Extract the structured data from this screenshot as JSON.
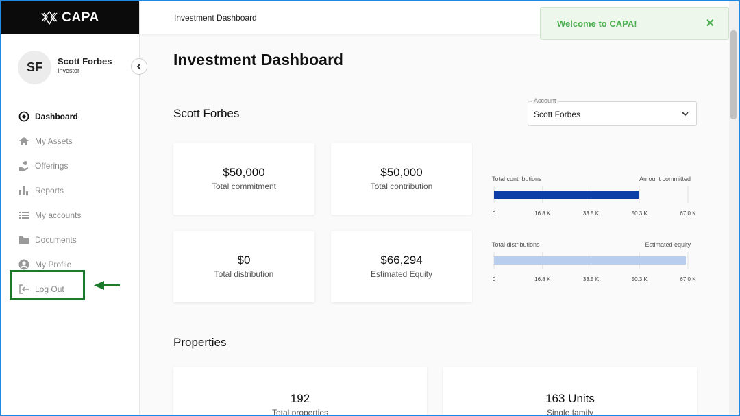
{
  "brand": {
    "name": "CAPA"
  },
  "user": {
    "initials": "SF",
    "name": "Scott Forbes",
    "role": "Investor"
  },
  "nav": [
    {
      "label": "Dashboard",
      "icon": "target-icon",
      "active": true
    },
    {
      "label": "My Assets",
      "icon": "home-icon",
      "active": false
    },
    {
      "label": "Offerings",
      "icon": "hand-coin-icon",
      "active": false
    },
    {
      "label": "Reports",
      "icon": "bar-chart-icon",
      "active": false
    },
    {
      "label": "My accounts",
      "icon": "list-icon",
      "active": false
    },
    {
      "label": "Documents",
      "icon": "folder-icon",
      "active": false
    },
    {
      "label": "My Profile",
      "icon": "profile-icon",
      "active": false
    },
    {
      "label": "Log Out",
      "icon": "logout-icon",
      "active": false
    }
  ],
  "topbar": {
    "title": "Investment Dashboard"
  },
  "toast": {
    "message": "Welcome to CAPA!",
    "close": "✕"
  },
  "main": {
    "title": "Investment Dashboard",
    "investor_name": "Scott Forbes",
    "account": {
      "label": "Account",
      "value": "Scott Forbes"
    }
  },
  "cards": [
    {
      "value": "$50,000",
      "label": "Total commitment"
    },
    {
      "value": "$50,000",
      "label": "Total contribution"
    },
    {
      "value": "$0",
      "label": "Total distribution"
    },
    {
      "value": "$66,294",
      "label": "Estimated Equity"
    }
  ],
  "chart_data": [
    {
      "type": "bar",
      "orientation": "horizontal",
      "left_label": "Total contributions",
      "right_label": "Amount committed",
      "value": 50000,
      "xlim": [
        0,
        67000
      ],
      "ticks": [
        "0",
        "16.8 K",
        "33.5 K",
        "50.3 K",
        "67.0 K"
      ],
      "tick_values": [
        0,
        16750,
        33500,
        50250,
        67000
      ],
      "color": "#0d3ea8"
    },
    {
      "type": "bar",
      "orientation": "horizontal",
      "left_label": "Total distributions",
      "right_label": "Estimated equity",
      "value": 66294,
      "xlim": [
        0,
        67000
      ],
      "ticks": [
        "0",
        "16.8 K",
        "33.5 K",
        "50.3 K",
        "67.0 K"
      ],
      "tick_values": [
        0,
        16750,
        33500,
        50250,
        67000
      ],
      "color": "#b9cdee"
    }
  ],
  "properties": {
    "title": "Properties",
    "items": [
      {
        "value": "192",
        "label": "Total properties"
      },
      {
        "value": "163 Units",
        "label": "Single family"
      }
    ]
  },
  "colors": {
    "accent_green": "#1c7a2c",
    "toast_green": "#4caf50"
  }
}
